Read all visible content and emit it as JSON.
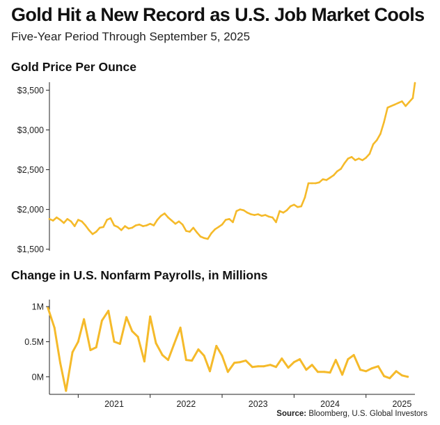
{
  "header": {
    "title": "Gold Hit a New Record as U.S. Job Market Cools",
    "subtitle": "Five-Year Period Through September 5, 2025"
  },
  "footer": {
    "source_label": "Source:",
    "source_text": "Bloomberg, U.S. Global Investors"
  },
  "colors": {
    "series": "#F5BA2A",
    "axis": "#222222"
  },
  "chart_data": [
    {
      "type": "line",
      "title": "Gold Price Per Ounce",
      "xlim": [
        2020.6,
        2025.68
      ],
      "ylim": [
        1480,
        3600
      ],
      "yticks": [
        1500,
        2000,
        2500,
        3000,
        3500
      ],
      "ytick_labels": [
        "$1,500",
        "$2,000",
        "$2,500",
        "$3,000",
        "$3,500"
      ],
      "grid": false,
      "x": [
        2020.6,
        2020.65,
        2020.7,
        2020.75,
        2020.8,
        2020.85,
        2020.9,
        2020.95,
        2021.0,
        2021.05,
        2021.1,
        2021.15,
        2021.2,
        2021.25,
        2021.3,
        2021.35,
        2021.4,
        2021.45,
        2021.5,
        2021.55,
        2021.6,
        2021.65,
        2021.7,
        2021.75,
        2021.8,
        2021.85,
        2021.9,
        2021.95,
        2022.0,
        2022.05,
        2022.1,
        2022.15,
        2022.2,
        2022.25,
        2022.3,
        2022.35,
        2022.4,
        2022.45,
        2022.5,
        2022.55,
        2022.6,
        2022.65,
        2022.7,
        2022.75,
        2022.8,
        2022.85,
        2022.9,
        2022.95,
        2023.0,
        2023.05,
        2023.1,
        2023.15,
        2023.2,
        2023.25,
        2023.3,
        2023.35,
        2023.4,
        2023.45,
        2023.5,
        2023.55,
        2023.6,
        2023.65,
        2023.7,
        2023.75,
        2023.8,
        2023.85,
        2023.9,
        2023.95,
        2024.0,
        2024.05,
        2024.1,
        2024.15,
        2024.2,
        2024.25,
        2024.3,
        2024.35,
        2024.4,
        2024.45,
        2024.5,
        2024.55,
        2024.6,
        2024.65,
        2024.7,
        2024.75,
        2024.8,
        2024.85,
        2024.9,
        2024.95,
        2025.0,
        2025.05,
        2025.1,
        2025.15,
        2025.2,
        2025.25,
        2025.3,
        2025.35,
        2025.4,
        2025.45,
        2025.5,
        2025.55,
        2025.6,
        2025.65,
        2025.68
      ],
      "y": [
        1880,
        1860,
        1900,
        1870,
        1830,
        1880,
        1850,
        1790,
        1870,
        1850,
        1800,
        1740,
        1690,
        1720,
        1770,
        1780,
        1870,
        1890,
        1800,
        1780,
        1740,
        1790,
        1760,
        1770,
        1800,
        1810,
        1790,
        1800,
        1820,
        1800,
        1870,
        1920,
        1950,
        1900,
        1860,
        1820,
        1850,
        1810,
        1730,
        1720,
        1770,
        1710,
        1660,
        1640,
        1630,
        1700,
        1750,
        1780,
        1810,
        1870,
        1880,
        1840,
        1980,
        2000,
        1990,
        1960,
        1940,
        1930,
        1940,
        1920,
        1930,
        1910,
        1900,
        1840,
        1980,
        1960,
        1990,
        2040,
        2060,
        2030,
        2040,
        2150,
        2330,
        2330,
        2330,
        2340,
        2380,
        2370,
        2400,
        2430,
        2480,
        2510,
        2580,
        2640,
        2660,
        2620,
        2640,
        2620,
        2650,
        2700,
        2820,
        2870,
        2950,
        3100,
        3280,
        3300,
        3320,
        3340,
        3360,
        3300,
        3350,
        3400,
        3590
      ]
    },
    {
      "type": "line",
      "title": "Change in U.S. Nonfarm Payrolls, in Millions",
      "xlim": [
        2020.6,
        2025.68
      ],
      "ylim": [
        -0.25,
        1.1
      ],
      "yticks": [
        0,
        0.5,
        1.0
      ],
      "ytick_labels": [
        "0M",
        "0.5M",
        "1M"
      ],
      "xticks": [
        2021,
        2022,
        2023,
        2024,
        2025
      ],
      "xtick_labels": [
        "2021",
        "2022",
        "2023",
        "2024",
        "2025"
      ],
      "grid": false,
      "x": [
        2020.58,
        2020.67,
        2020.75,
        2020.83,
        2020.92,
        2021.0,
        2021.08,
        2021.17,
        2021.25,
        2021.33,
        2021.42,
        2021.5,
        2021.58,
        2021.67,
        2021.75,
        2021.83,
        2021.92,
        2022.0,
        2022.08,
        2022.17,
        2022.25,
        2022.33,
        2022.42,
        2022.5,
        2022.58,
        2022.67,
        2022.75,
        2022.83,
        2022.92,
        2023.0,
        2023.08,
        2023.17,
        2023.25,
        2023.33,
        2023.42,
        2023.5,
        2023.58,
        2023.67,
        2023.75,
        2023.83,
        2023.92,
        2024.0,
        2024.08,
        2024.17,
        2024.25,
        2024.33,
        2024.42,
        2024.5,
        2024.58,
        2024.67,
        2024.75,
        2024.83,
        2024.92,
        2025.0,
        2025.08,
        2025.17,
        2025.25,
        2025.33,
        2025.42,
        2025.5,
        2025.58
      ],
      "y": [
        0.98,
        0.7,
        0.2,
        -0.2,
        0.35,
        0.5,
        0.82,
        0.38,
        0.42,
        0.8,
        0.94,
        0.5,
        0.47,
        0.85,
        0.65,
        0.57,
        0.22,
        0.86,
        0.48,
        0.31,
        0.24,
        0.46,
        0.7,
        0.24,
        0.23,
        0.39,
        0.3,
        0.08,
        0.44,
        0.3,
        0.07,
        0.2,
        0.21,
        0.23,
        0.14,
        0.15,
        0.15,
        0.17,
        0.14,
        0.26,
        0.13,
        0.21,
        0.25,
        0.1,
        0.17,
        0.07,
        0.07,
        0.06,
        0.24,
        0.03,
        0.25,
        0.31,
        0.1,
        0.08,
        0.12,
        0.15,
        0.01,
        -0.02,
        0.08,
        0.02,
        0.0
      ]
    }
  ]
}
